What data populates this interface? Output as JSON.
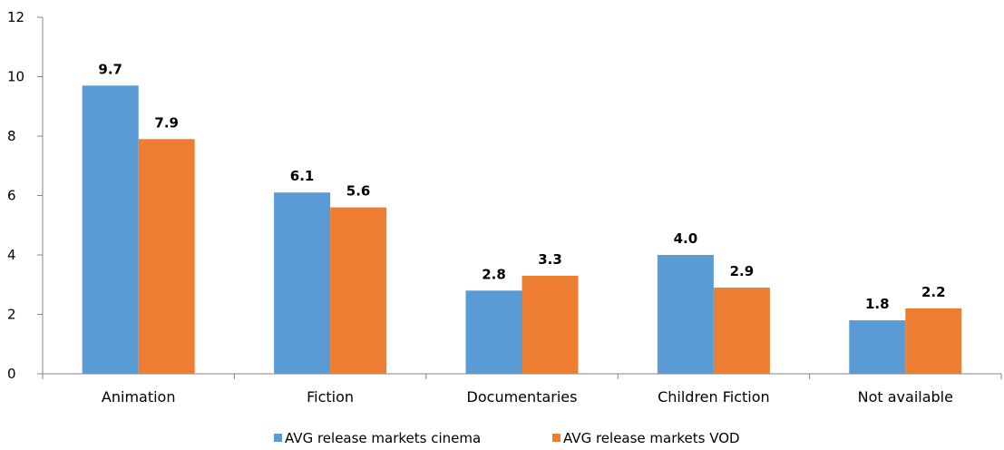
{
  "chart_data": {
    "type": "bar",
    "categories": [
      "Animation",
      "Fiction",
      "Documentaries",
      "Children Fiction",
      "Not available"
    ],
    "series": [
      {
        "name": "AVG release markets cinema",
        "values": [
          9.7,
          6.1,
          2.8,
          4.0,
          1.8
        ],
        "labels": [
          "9.7",
          "6.1",
          "2.8",
          "4.0",
          "1.8"
        ],
        "color": "#5B9BD5"
      },
      {
        "name": "AVG release markets VOD",
        "values": [
          7.9,
          5.6,
          3.3,
          2.9,
          2.2
        ],
        "labels": [
          "7.9",
          "5.6",
          "3.3",
          "2.9",
          "2.2"
        ],
        "color": "#ED7D31"
      }
    ],
    "ylim": [
      0,
      12
    ],
    "yticks": [
      "0",
      "2",
      "4",
      "6",
      "8",
      "10",
      "12"
    ],
    "grid": false,
    "legend_position": "bottom"
  }
}
